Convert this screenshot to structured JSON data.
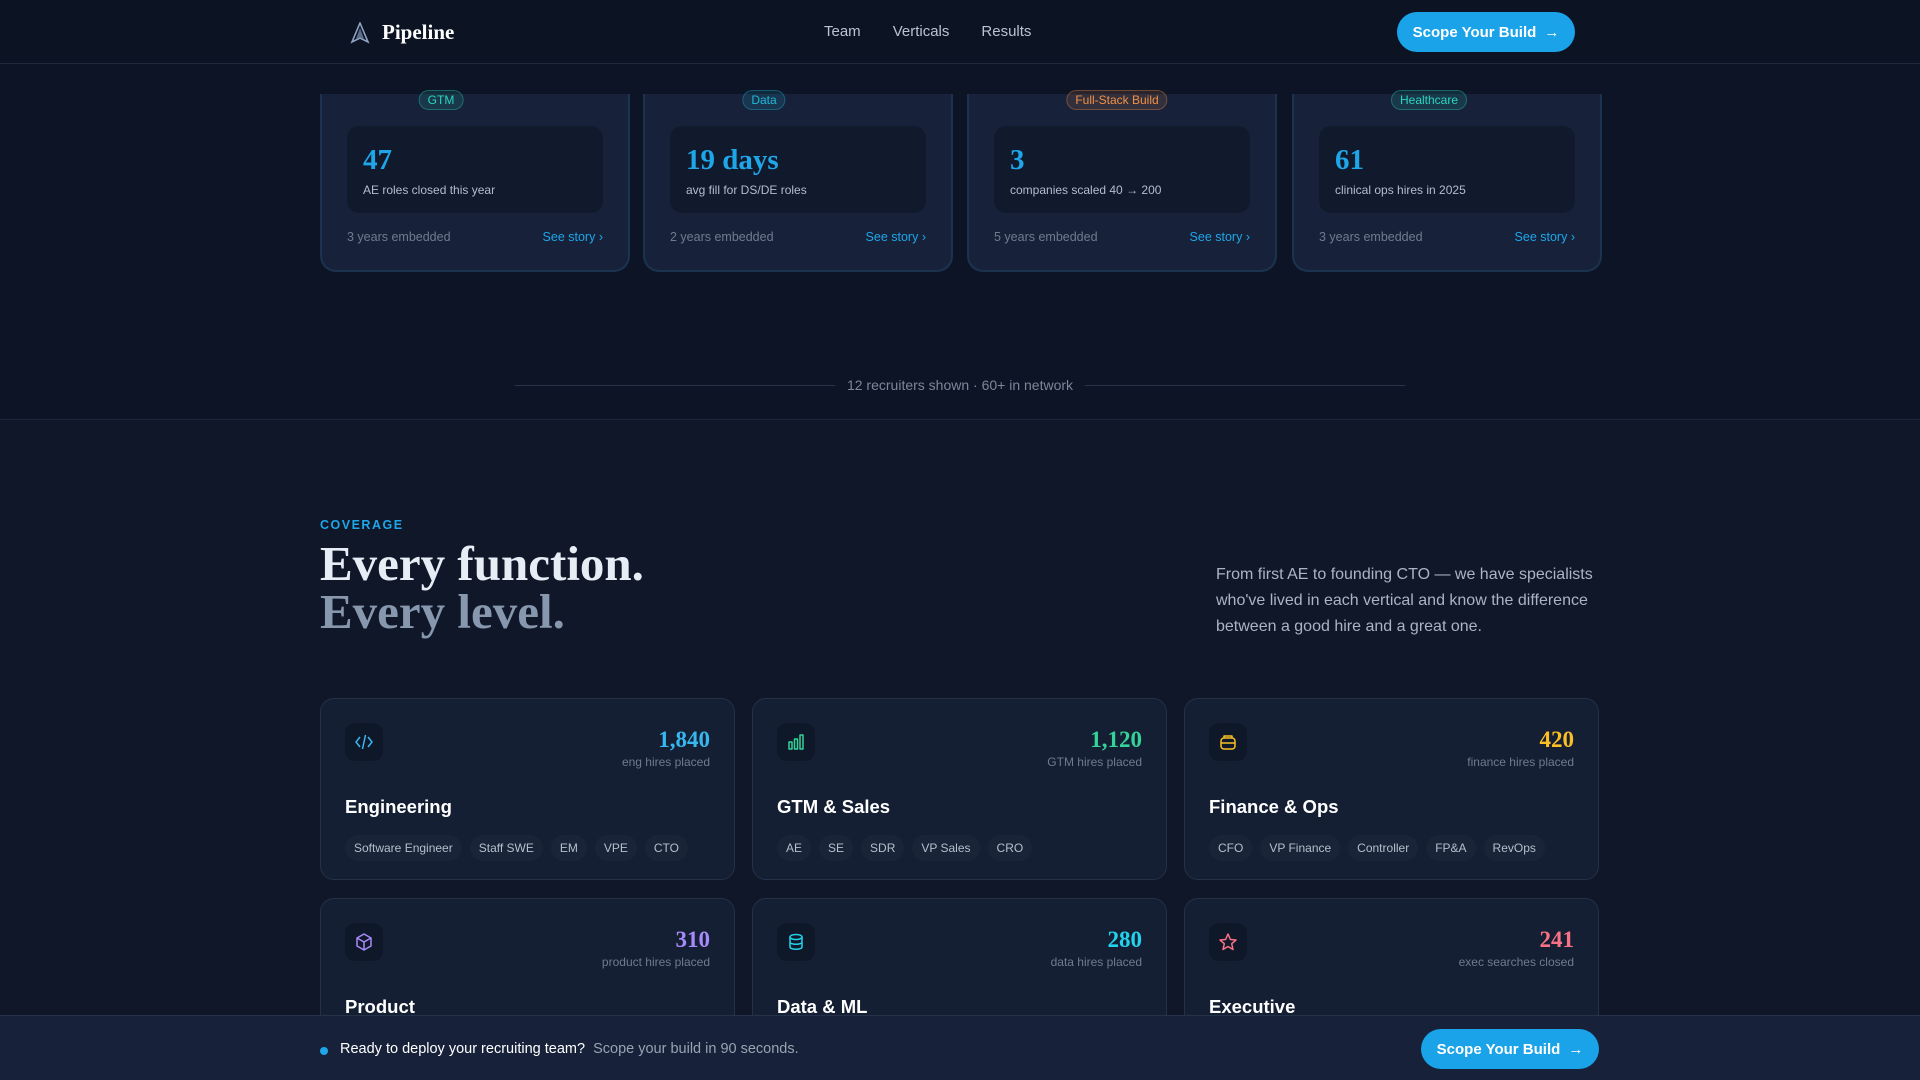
{
  "nav": {
    "brand": "Pipeline",
    "links": [
      "Team",
      "Verticals",
      "Results"
    ],
    "cta": "Scope Your Build"
  },
  "recruiters": [
    {
      "tag": "GTM",
      "tag_color": "#2dd4bf",
      "number": "47",
      "label": "AE roles closed this year",
      "tenure": "3 years embedded",
      "link": "See story"
    },
    {
      "tag": "Data",
      "tag_color": "#22b8d8",
      "number": "19 days",
      "label": "avg fill for DS/DE roles",
      "tenure": "2 years embedded",
      "link": "See story"
    },
    {
      "tag": "Full-Stack Build",
      "tag_color": "#f0914a",
      "number": "3",
      "label": "companies scaled 40 → 200",
      "tenure": "5 years embedded",
      "link": "See story"
    },
    {
      "tag": "Healthcare",
      "tag_color": "#2dd4bf",
      "number": "61",
      "label": "clinical ops hires in 2025",
      "tenure": "3 years embedded",
      "link": "See story"
    }
  ],
  "network_note": "12 recruiters shown · 60+ in network",
  "coverage": {
    "eyebrow": "COVERAGE",
    "title_line1": "Every function.",
    "title_line2": "Every level.",
    "description": "From first AE to founding CTO — we have specialists who've lived in each vertical and know the difference between a good hire and a great one.",
    "cards": [
      {
        "icon": "code-icon",
        "color": "#38b6f0",
        "count": "1,840",
        "count_label": "eng hires placed",
        "title": "Engineering",
        "roles": [
          "Software Engineer",
          "Staff SWE",
          "EM",
          "VPE",
          "CTO"
        ]
      },
      {
        "icon": "bar-chart-icon",
        "color": "#34d399",
        "count": "1,120",
        "count_label": "GTM hires placed",
        "title": "GTM & Sales",
        "roles": [
          "AE",
          "SE",
          "SDR",
          "VP Sales",
          "CRO"
        ]
      },
      {
        "icon": "wallet-icon",
        "color": "#fbbf24",
        "count": "420",
        "count_label": "finance hires placed",
        "title": "Finance & Ops",
        "roles": [
          "CFO",
          "VP Finance",
          "Controller",
          "FP&A",
          "RevOps"
        ]
      },
      {
        "icon": "box-icon",
        "color": "#a78bfa",
        "count": "310",
        "count_label": "product hires placed",
        "title": "Product",
        "roles": []
      },
      {
        "icon": "database-icon",
        "color": "#22d3ee",
        "count": "280",
        "count_label": "data hires placed",
        "title": "Data & ML",
        "roles": []
      },
      {
        "icon": "star-icon",
        "color": "#fb7185",
        "count": "241",
        "count_label": "exec searches closed",
        "title": "Executive",
        "roles": []
      }
    ]
  },
  "bottom_bar": {
    "headline": "Ready to deploy your recruiting team?",
    "sub": "Scope your build in 90 seconds.",
    "cta": "Scope Your Build"
  }
}
